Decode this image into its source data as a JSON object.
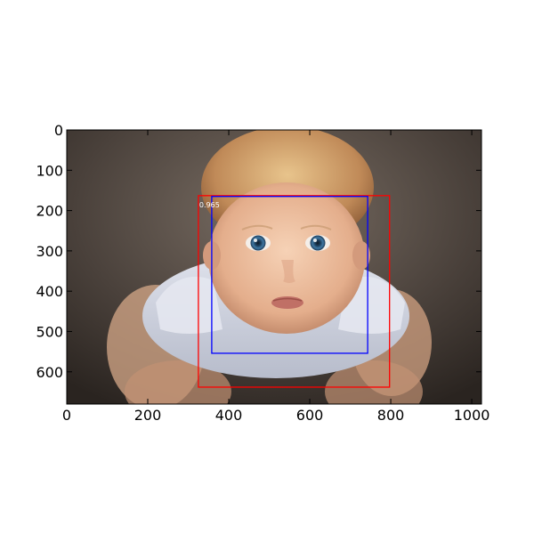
{
  "image": {
    "description_icon": "photo-of-baby-looking-up",
    "x_extent": [
      0,
      1024
    ],
    "y_extent": [
      0,
      680
    ]
  },
  "axes": {
    "x_ticks": [
      0,
      200,
      400,
      600,
      800,
      1000
    ],
    "y_ticks": [
      0,
      100,
      200,
      300,
      400,
      500,
      600
    ]
  },
  "boxes": [
    {
      "color": "#ff0000",
      "x0": 325,
      "y0": 163,
      "x1": 797,
      "y1": 638
    },
    {
      "color": "#0000ff",
      "x0": 358,
      "y0": 165,
      "x1": 743,
      "y1": 554
    }
  ],
  "score": {
    "text": "0.965",
    "x": 325,
    "y": 183
  },
  "colors": {
    "skin": "#e9b99a",
    "hair": "#c89868",
    "background": "#4a413b",
    "eyes": "#3a6c94"
  }
}
